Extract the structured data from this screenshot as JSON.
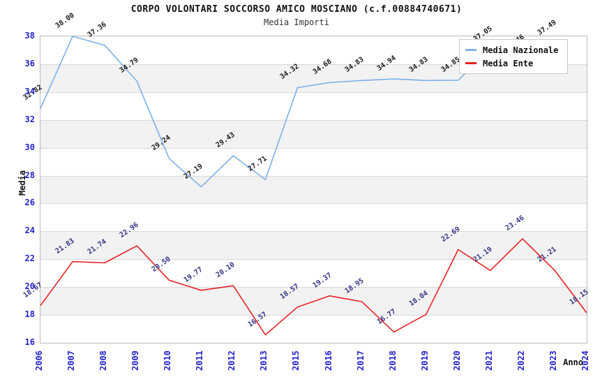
{
  "header": {
    "title": "CORPO VOLONTARI SOCCORSO AMICO MOSCIANO (c.f.00884740671)",
    "subtitle": "Media Importi"
  },
  "axes": {
    "x_title": "Anno",
    "y_title": "Media",
    "y_ticks": [
      16,
      18,
      20,
      22,
      24,
      26,
      28,
      30,
      32,
      34,
      36,
      38
    ]
  },
  "legend": {
    "items": [
      {
        "label": "Media Nazionale",
        "color": "#7cb1e8"
      },
      {
        "label": "Media Ente",
        "color": "#e62222"
      }
    ]
  },
  "chart_data": {
    "type": "line",
    "title": "CORPO VOLONTARI SOCCORSO AMICO MOSCIANO (c.f.00884740671)",
    "subtitle": "Media Importi",
    "xlabel": "Anno",
    "ylabel": "Media",
    "ylim": [
      16,
      38
    ],
    "y_step": 2,
    "grid": true,
    "band_fill": "#f2f2f2",
    "legend_position": "top-right",
    "categories": [
      "2006",
      "2007",
      "2008",
      "2009",
      "2010",
      "2011",
      "2012",
      "2013",
      "2015",
      "2016",
      "2017",
      "2018",
      "2019",
      "2020",
      "2021",
      "2022",
      "2023",
      "2024"
    ],
    "series": [
      {
        "name": "Media Nazionale",
        "color": "#7cb1e8",
        "label_color": "#1a1a1a",
        "values": [
          32.82,
          38.0,
          37.36,
          34.79,
          29.24,
          27.19,
          29.43,
          27.71,
          34.32,
          34.68,
          34.83,
          34.94,
          34.83,
          34.85,
          37.05,
          36.46,
          37.49,
          null
        ]
      },
      {
        "name": "Media Ente",
        "color": "#e62222",
        "label_color": "#333388",
        "values": [
          18.67,
          21.83,
          21.74,
          22.96,
          20.5,
          19.77,
          20.1,
          16.57,
          18.57,
          19.37,
          18.95,
          16.77,
          18.04,
          22.69,
          21.19,
          23.46,
          21.21,
          18.15
        ]
      }
    ]
  }
}
